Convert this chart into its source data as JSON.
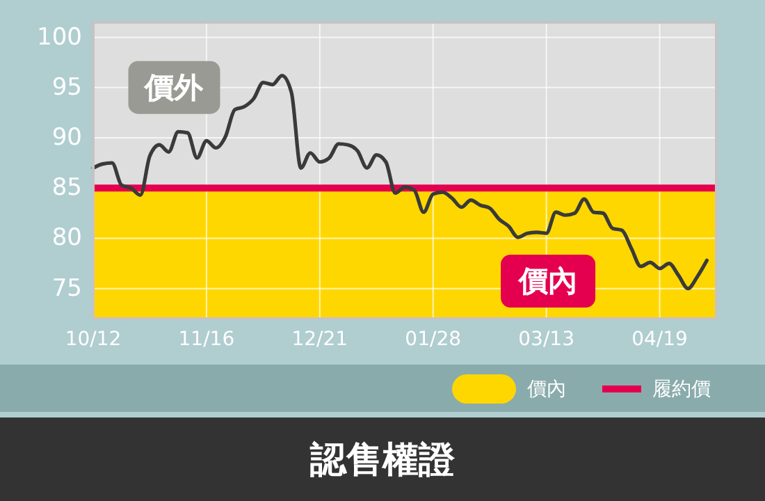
{
  "chart_data": {
    "type": "line",
    "title": "認售權證",
    "categories": [
      "10/12",
      null,
      null,
      null,
      null,
      null,
      null,
      null,
      null,
      null,
      null,
      null,
      "11/16",
      null,
      null,
      null,
      null,
      null,
      null,
      null,
      null,
      null,
      null,
      null,
      "12/21",
      null,
      null,
      null,
      null,
      null,
      null,
      null,
      null,
      null,
      null,
      null,
      "01/28",
      null,
      null,
      null,
      null,
      null,
      null,
      null,
      null,
      null,
      null,
      null,
      "03/13",
      null,
      null,
      null,
      null,
      null,
      null,
      null,
      null,
      null,
      null,
      null,
      "04/19",
      null,
      null,
      null,
      null,
      null
    ],
    "series": [
      {
        "color": "#3a3a3a",
        "values": [
          87,
          87.4,
          87.5,
          85.3,
          85,
          84.3,
          88.2,
          89.3,
          88.6,
          90.6,
          90.5,
          88,
          89.7,
          89,
          90.1,
          92.8,
          93.1,
          93.9,
          95.5,
          95.3,
          96.2,
          94.5,
          87,
          88.5,
          87.6,
          88,
          89.4,
          89.3,
          88.7,
          87,
          88.3,
          87.6,
          84.5,
          85.1,
          84.8,
          82.6,
          84.4,
          84.6,
          84,
          83.1,
          83.8,
          83.3,
          83,
          81.9,
          81.2,
          80.1,
          80.5,
          80.6,
          80.5,
          82.6,
          82.3,
          82.5,
          83.9,
          82.6,
          82.5,
          81,
          80.8,
          79,
          77.2,
          77.6,
          77,
          77.5,
          76.3,
          75,
          76.2,
          77.8
        ]
      }
    ],
    "ylim": [
      72,
      101.5
    ],
    "yticks": [
      75,
      80,
      85,
      90,
      95,
      100
    ],
    "grid": true,
    "marker": "none",
    "line_style": "solid",
    "legend": "bottom right",
    "bands": [
      {
        "axis": "y",
        "from": 72,
        "to": 85,
        "label": "價內",
        "color": "#ffd700"
      }
    ],
    "ref_lines": [
      {
        "axis": "y",
        "value": 85,
        "label": "履約價",
        "color": "#e4004f"
      }
    ],
    "annotations": [
      "價外"
    ]
  }
}
